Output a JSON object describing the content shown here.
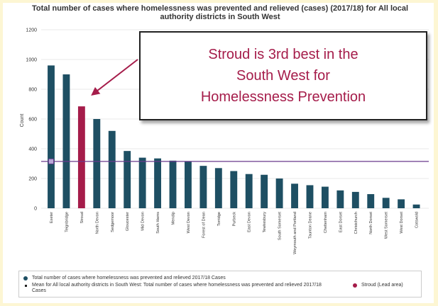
{
  "title_line1": "Total number of cases where homelessness was prevented and relieved (cases) (2017/18) for All local",
  "title_line2": "authority districts in South West",
  "callout": {
    "line1": "Stroud is 3rd best  in the",
    "line2": "South West  for",
    "line3": "Homelessness Prevention"
  },
  "legend": {
    "series_label": "Total number of cases where homelessness was prevented and relieved 2017/18 Cases",
    "mean_label": "Mean for All local authority districts in South West: Total number of cases where homelessness was prevented and relieved 2017/18 Cases",
    "lead_label": "Stroud (Lead area)"
  },
  "colors": {
    "bar": "#1e4f63",
    "lead_bar": "#a51c4a",
    "mean_line": "#6a3a8c",
    "callout_text": "#a51c4a",
    "arrow": "#a51c4a"
  },
  "chart_data": {
    "type": "bar",
    "title": "Total number of cases where homelessness was prevented and relieved (cases) (2017/18) for All local authority districts in South West",
    "ylabel": "Count",
    "xlabel": "",
    "ylim": [
      0,
      1200
    ],
    "yticks": [
      0,
      200,
      400,
      600,
      800,
      1000,
      1200
    ],
    "grid": true,
    "categories": [
      "Exeter",
      "Teignbridge",
      "Stroud",
      "North Devon",
      "Sedgemoor",
      "Gloucester",
      "Mid Devon",
      "South Hams",
      "Mendip",
      "West Devon",
      "Forest of Dean",
      "Torridge",
      "Purbeck",
      "East Devon",
      "Tewkesbury",
      "South Somerset",
      "Weymouth and Portland",
      "Taunton Deane",
      "Cheltenham",
      "East Dorset",
      "Christchurch",
      "North Dorset",
      "West Somerset",
      "West Dorset",
      "Cotswold"
    ],
    "values": [
      960,
      900,
      685,
      600,
      520,
      385,
      340,
      335,
      320,
      315,
      285,
      270,
      250,
      230,
      225,
      200,
      165,
      155,
      145,
      120,
      110,
      95,
      70,
      60,
      25
    ],
    "highlight": "Stroud",
    "mean": 315
  }
}
